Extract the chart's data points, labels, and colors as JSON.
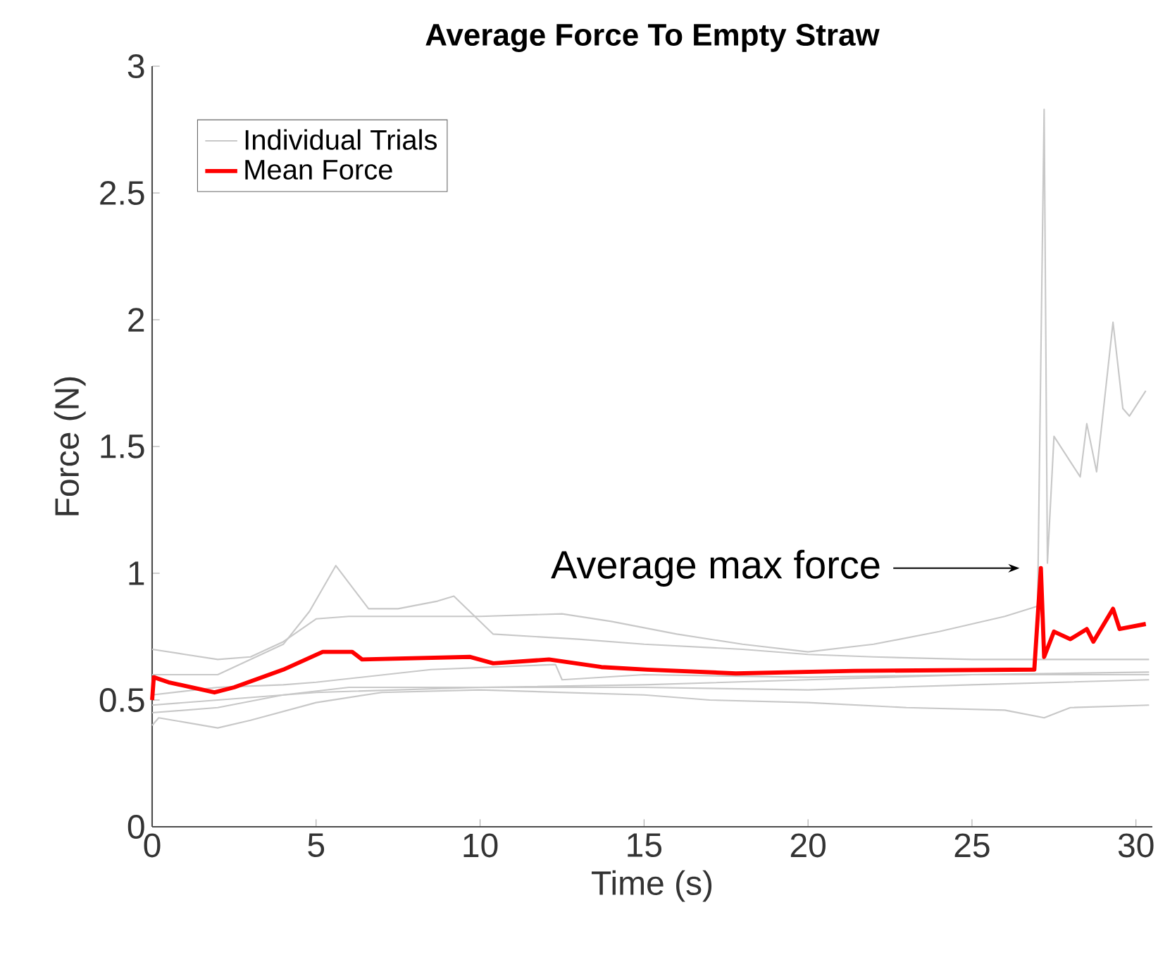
{
  "chart_data": {
    "type": "line",
    "title": "Average Force To Empty Straw",
    "xlabel": "Time (s)",
    "ylabel": "Force (N)",
    "xlim": [
      0,
      30.5
    ],
    "ylim": [
      0,
      3
    ],
    "xticks": [
      0,
      5,
      10,
      15,
      20,
      25,
      30
    ],
    "yticks": [
      0,
      0.5,
      1,
      1.5,
      2,
      2.5,
      3
    ],
    "grid": false,
    "legend": "top left",
    "marker": "none",
    "line_style": "solid",
    "annotations": [
      "Average max force"
    ],
    "series": [
      {
        "name": "Individual Trials",
        "color": "#c8c8c8",
        "x": [
          0,
          1,
          2,
          3,
          4,
          5,
          6,
          8,
          10,
          12.5,
          14,
          16,
          18,
          20,
          22,
          24,
          26,
          27,
          27.2,
          27.3,
          27.5,
          28.3,
          28.5,
          28.8,
          29.3,
          29.6,
          29.8,
          30,
          30.3
        ],
        "values": [
          0.7,
          0.68,
          0.66,
          0.67,
          0.73,
          0.82,
          0.83,
          0.83,
          0.83,
          0.84,
          0.81,
          0.76,
          0.72,
          0.69,
          0.72,
          0.77,
          0.83,
          0.87,
          2.83,
          1.04,
          1.54,
          1.38,
          1.59,
          1.4,
          1.99,
          1.65,
          1.62,
          1.66,
          1.72
        ]
      },
      {
        "color": "#c8c8c8",
        "x": [
          0,
          2,
          4,
          4.8,
          5.6,
          6.6,
          7.5,
          8.7,
          9.2,
          10.4,
          13,
          15,
          18,
          20,
          22,
          25,
          28,
          30.4
        ],
        "values": [
          0.6,
          0.6,
          0.72,
          0.85,
          1.03,
          0.86,
          0.86,
          0.89,
          0.91,
          0.76,
          0.74,
          0.72,
          0.7,
          0.68,
          0.67,
          0.66,
          0.66,
          0.66
        ]
      },
      {
        "color": "#c8c8c8",
        "x": [
          0,
          2,
          4,
          5,
          8.5,
          12.3,
          12.5,
          15,
          20,
          25,
          30.4
        ],
        "values": [
          0.52,
          0.55,
          0.56,
          0.57,
          0.62,
          0.64,
          0.58,
          0.6,
          0.59,
          0.6,
          0.61
        ]
      },
      {
        "color": "#c8c8c8",
        "x": [
          0,
          2,
          5,
          10,
          15,
          20,
          25,
          30.4
        ],
        "values": [
          0.48,
          0.5,
          0.53,
          0.55,
          0.55,
          0.54,
          0.56,
          0.58
        ]
      },
      {
        "color": "#c8c8c8",
        "x": [
          0,
          0.2,
          2,
          3,
          5,
          7,
          10,
          15,
          17,
          20,
          23,
          26,
          27.2,
          28,
          30.4
        ],
        "values": [
          0.4,
          0.43,
          0.39,
          0.42,
          0.49,
          0.53,
          0.54,
          0.52,
          0.5,
          0.49,
          0.47,
          0.46,
          0.43,
          0.47,
          0.48
        ]
      },
      {
        "color": "#c8c8c8",
        "x": [
          0,
          2,
          4,
          6,
          10,
          15,
          20,
          25,
          30.4
        ],
        "values": [
          0.45,
          0.47,
          0.52,
          0.55,
          0.55,
          0.56,
          0.58,
          0.6,
          0.6
        ]
      },
      {
        "name": "Mean Force",
        "color": "#ff0000",
        "x": [
          0,
          0.05,
          0.5,
          1.9,
          2.5,
          4,
          5.2,
          6.1,
          6.4,
          9.7,
          10.4,
          12.1,
          13.7,
          15.1,
          17.8,
          21.4,
          26.9,
          27.1,
          27.2,
          27.5,
          28.0,
          28.5,
          28.7,
          29.3,
          29.5,
          30.3
        ],
        "values": [
          0.5,
          0.59,
          0.57,
          0.53,
          0.55,
          0.62,
          0.69,
          0.69,
          0.66,
          0.67,
          0.645,
          0.66,
          0.63,
          0.62,
          0.605,
          0.615,
          0.62,
          1.02,
          0.67,
          0.77,
          0.74,
          0.78,
          0.73,
          0.86,
          0.78,
          0.8
        ]
      }
    ]
  }
}
